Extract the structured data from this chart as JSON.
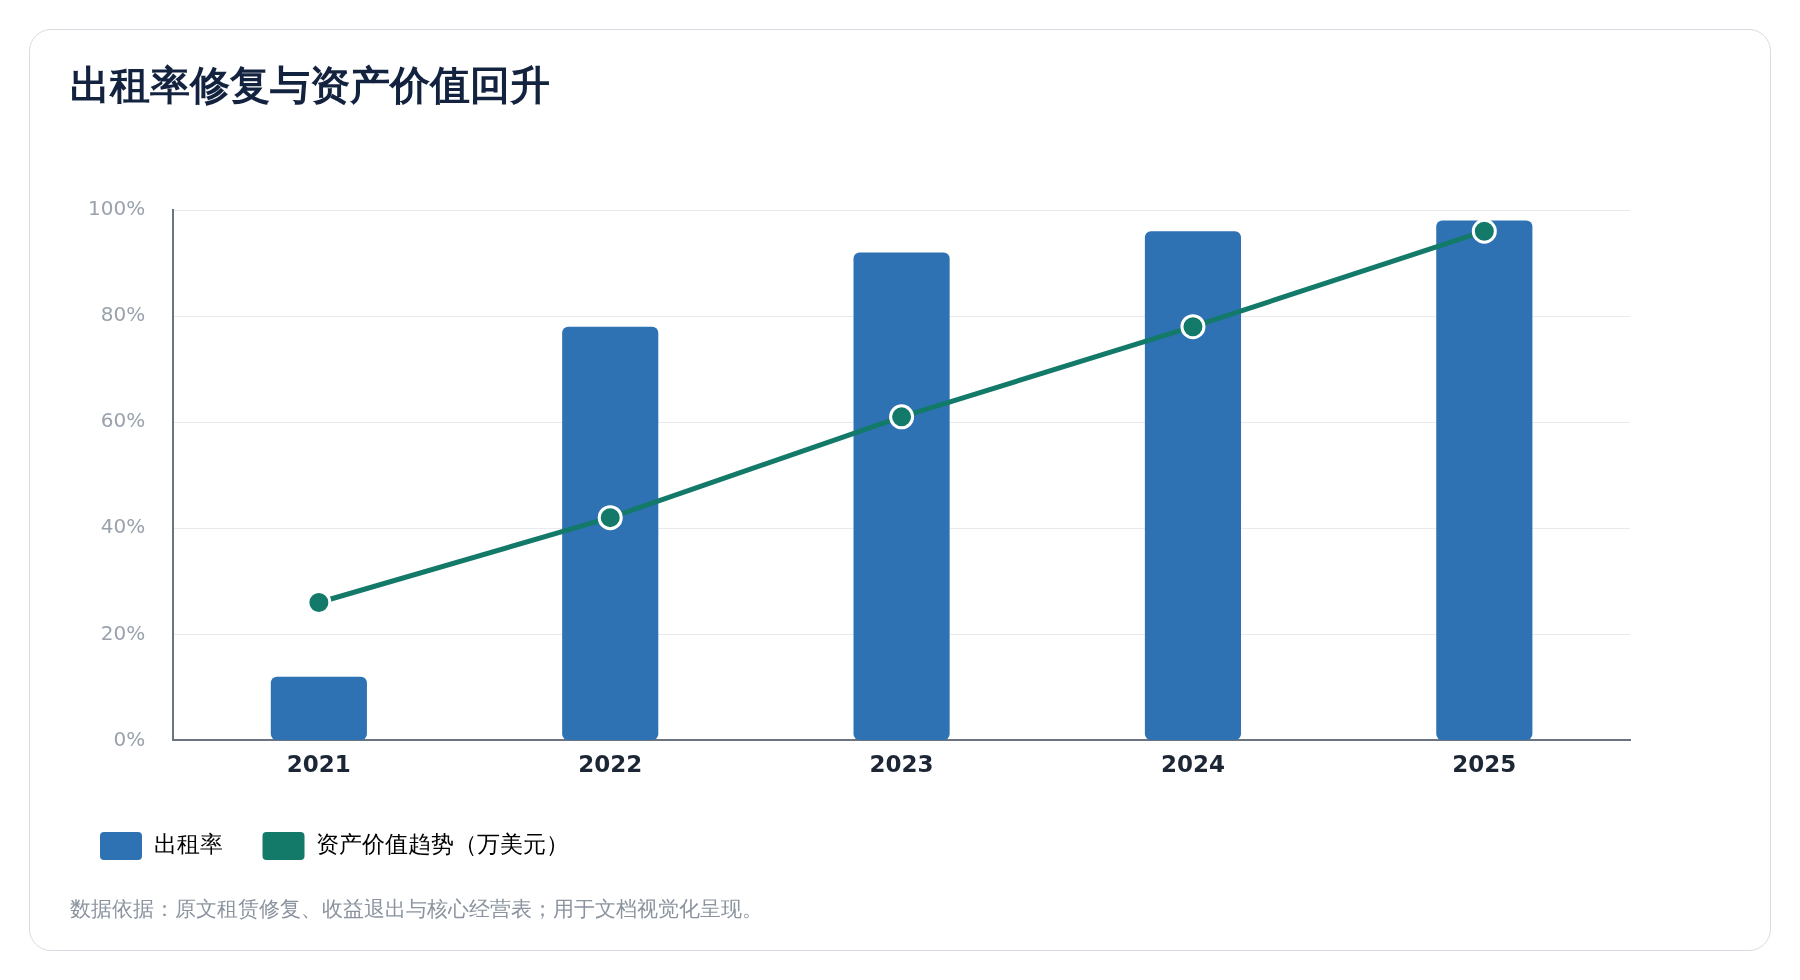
{
  "chart_data": {
    "type": "bar",
    "title": "出租率修复与资产价值回升",
    "categories": [
      "2021",
      "2022",
      "2023",
      "2024",
      "2025"
    ],
    "series": [
      {
        "name": "出租率",
        "color": "#2e72b3",
        "values": [
          12,
          78,
          92,
          96,
          98
        ]
      },
      {
        "name": "资产价值趋势（万美元）",
        "type": "line",
        "color": "#137a6a",
        "values": [
          26,
          42,
          61,
          78,
          96
        ]
      }
    ],
    "ylim": [
      0,
      100
    ],
    "yticks": [
      {
        "value": 0,
        "label": "0%"
      },
      {
        "value": 20,
        "label": "20%"
      },
      {
        "value": 40,
        "label": "40%"
      },
      {
        "value": 60,
        "label": "60%"
      },
      {
        "value": 80,
        "label": "80%"
      },
      {
        "value": 100,
        "label": "100%"
      }
    ],
    "grid": "y",
    "legend": "bottom left",
    "marker": "circle",
    "line_style": "solid",
    "annotations": [
      "数据依据：原文租赁修复、收益退出与核心经营表；用于文档视觉化呈现。"
    ]
  }
}
